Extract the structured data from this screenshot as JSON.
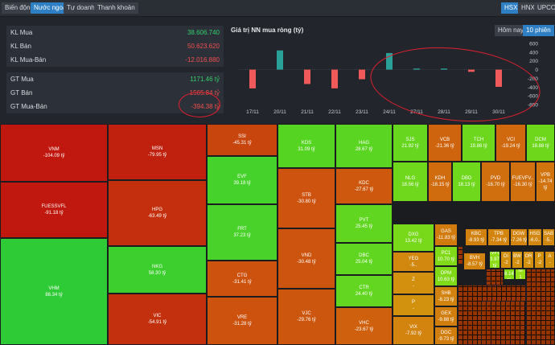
{
  "nav": {
    "tabs": [
      "Biến động",
      "Nước ngoài",
      "Tự doanh",
      "Thanh khoản"
    ],
    "active_tab": "Nước ngoài",
    "exchanges": [
      "HSX",
      "HNX",
      "UPCOM"
    ],
    "active_exchange": "HSX"
  },
  "stats": [
    {
      "label": "KL Mua",
      "value": "38.606.740",
      "tone": "green"
    },
    {
      "label": "KL Bán",
      "value": "50.623.620",
      "tone": "red"
    },
    {
      "label": "KL Mua-Bán",
      "value": "-12.016.880",
      "tone": "red"
    },
    {
      "label": "GT Mua",
      "value": "1171.46 tỷ",
      "tone": "green"
    },
    {
      "label": "GT Bán",
      "value": "1565.84 tỷ",
      "tone": "red"
    },
    {
      "label": "GT Mua-Bán",
      "value": "-394.38 tỷ",
      "tone": "red"
    }
  ],
  "period": {
    "options": [
      "Hôm nay",
      "10 phiên"
    ],
    "active": "10 phiên"
  },
  "chart_data": {
    "type": "bar",
    "title": "Giá trị NN mua ròng (tỷ)",
    "categories": [
      "17/11",
      "20/11",
      "21/11",
      "22/11",
      "23/11",
      "24/11",
      "27/11",
      "28/11",
      "29/11",
      "30/11"
    ],
    "values": [
      -430,
      440,
      -330,
      -430,
      -220,
      380,
      25,
      25,
      -50,
      -394
    ],
    "ylim": [
      -800,
      600
    ],
    "yticks": [
      "600",
      "400",
      "200",
      "0",
      "-200",
      "-400",
      "-600",
      "-800"
    ],
    "xlabel": "",
    "ylabel": "",
    "colors": {
      "positive": "#2aa198",
      "negative": "#f05a5a"
    }
  },
  "treemap": [
    {
      "ticker": "VNM",
      "value": "-104.09 tỷ",
      "color": "#c0170e"
    },
    {
      "ticker": "FUESSVFL",
      "value": "-91.18 tỷ",
      "color": "#c0170e"
    },
    {
      "ticker": "VHM",
      "value": "86.34 tỷ",
      "color": "#2fcb36"
    },
    {
      "ticker": "MSN",
      "value": "-79.95 tỷ",
      "color": "#c0200e"
    },
    {
      "ticker": "HPG",
      "value": "-63.49 tỷ",
      "color": "#c4300e"
    },
    {
      "ticker": "NKG",
      "value": "58.30 tỷ",
      "color": "#3ccf2e"
    },
    {
      "ticker": "VIC",
      "value": "-54.91 tỷ",
      "color": "#c3300e"
    },
    {
      "ticker": "SSI",
      "value": "-45.31 tỷ",
      "color": "#c9450e"
    },
    {
      "ticker": "EVF",
      "value": "39.18 tỷ",
      "color": "#45d22a"
    },
    {
      "ticker": "FRT",
      "value": "37.23 tỷ",
      "color": "#48d22a"
    },
    {
      "ticker": "CTG",
      "value": "-31.41 tỷ",
      "color": "#cc520e"
    },
    {
      "ticker": "VRE",
      "value": "-31.28 tỷ",
      "color": "#cc520e"
    },
    {
      "ticker": "KDS",
      "value": "31.09 tỷ",
      "color": "#56d422"
    },
    {
      "ticker": "STB",
      "value": "-30.80 tỷ",
      "color": "#cd530e"
    },
    {
      "ticker": "VND",
      "value": "-30.48 tỷ",
      "color": "#cd540e"
    },
    {
      "ticker": "VJC",
      "value": "-29.76 tỷ",
      "color": "#cd560e"
    },
    {
      "ticker": "HAG",
      "value": "28.67 tỷ",
      "color": "#5ad522"
    },
    {
      "ticker": "KDC",
      "value": "-27.67 tỷ",
      "color": "#ce590e"
    },
    {
      "ticker": "PVT",
      "value": "25.45 tỷ",
      "color": "#60d620"
    },
    {
      "ticker": "DBC",
      "value": "25.04 tỷ",
      "color": "#60d620"
    },
    {
      "ticker": "CTR",
      "value": "24.40 tỷ",
      "color": "#62d620"
    },
    {
      "ticker": "VHC",
      "value": "-23.67 tỷ",
      "color": "#cf600e"
    },
    {
      "ticker": "SJS",
      "value": "21.92 tỷ",
      "color": "#66d61e"
    },
    {
      "ticker": "VCB",
      "value": "-21.36 tỷ",
      "color": "#cf640e"
    },
    {
      "ticker": "TCH",
      "value": "19.88 tỷ",
      "color": "#6cd71c"
    },
    {
      "ticker": "VCI",
      "value": "-19.24 tỷ",
      "color": "#d0680e"
    },
    {
      "ticker": "DCM",
      "value": "18.88 tỷ",
      "color": "#6ed71c"
    },
    {
      "ticker": "NLG",
      "value": "18.56 tỷ",
      "color": "#70d81c"
    },
    {
      "ticker": "KDH",
      "value": "-18.15 tỷ",
      "color": "#d06b0e"
    },
    {
      "ticker": "DBD",
      "value": "18.13 tỷ",
      "color": "#70d81c"
    },
    {
      "ticker": "PVD",
      "value": "-16.70 tỷ",
      "color": "#d06f0e"
    },
    {
      "ticker": "FUEVFV..",
      "value": "-16.30 tỷ",
      "color": "#d0700e"
    },
    {
      "ticker": "VPB",
      "value": "-14.74 tỷ",
      "color": "#d1740e"
    },
    {
      "ticker": "DXG",
      "value": "13.42 tỷ",
      "color": "#78d91a"
    },
    {
      "ticker": "GAS",
      "value": "-11.83 tỷ",
      "color": "#d17a0e"
    },
    {
      "ticker": "KBC",
      "value": "-8.93 tỷ",
      "color": "#d2800e"
    },
    {
      "ticker": "TPB",
      "value": "-7.34 tỷ",
      "color": "#d2840e"
    },
    {
      "ticker": "DGW",
      "value": "-7.26 tỷ",
      "color": "#d2840e"
    },
    {
      "ticker": "HSG",
      "value": "-6.0..",
      "color": "#d2870e"
    },
    {
      "ticker": "SAB",
      "value": "-5..",
      "color": "#d2880e"
    },
    {
      "ticker": "YEG",
      "value": "-5..",
      "color": "#d2880e"
    },
    {
      "ticker": "PC1",
      "value": "10.70 tỷ",
      "color": "#80da18"
    },
    {
      "ticker": "BVH",
      "value": "-8.57 tỷ",
      "color": "#d2820e"
    },
    {
      "ticker": "EVFI..",
      "value": "3.97 tỷ",
      "color": "#8cdc16"
    },
    {
      "ticker": "DI",
      "value": "-2",
      "color": "#d3900e"
    },
    {
      "ticker": "BW",
      "value": "-2",
      "color": "#d3900e"
    },
    {
      "ticker": "OR",
      "value": "-2",
      "color": "#d3900e"
    },
    {
      "ticker": "P",
      "value": "-2",
      "color": "#d3900e"
    },
    {
      "ticker": "A",
      "value": "-",
      "color": "#d3900e"
    },
    {
      "ticker": "Z",
      "value": "-",
      "color": "#d3900e"
    },
    {
      "ticker": "DPM",
      "value": "10.63 tỷ",
      "color": "#80da18"
    },
    {
      "ticker": "SHB",
      "value": "-8.23 tỷ",
      "color": "#d2820e"
    },
    {
      "ticker": "GMD",
      "value": "8.14 tỷ",
      "color": "#84db18"
    },
    {
      "ticker": "SI",
      "value": "1",
      "color": "#98de14"
    },
    {
      "ticker": "P",
      "value": "-",
      "color": "#d3920e"
    },
    {
      "ticker": "GEX",
      "value": "-9.88 tỷ",
      "color": "#d27e0e"
    },
    {
      "ticker": "VIX",
      "value": "-7.92 tỷ",
      "color": "#d2840e"
    },
    {
      "ticker": "DGC",
      "value": "-9.73 tỷ",
      "color": "#d27e0e"
    },
    {
      "ticker": "LPB",
      "value": "-7.70 tỷ",
      "color": "#d2840e"
    }
  ]
}
